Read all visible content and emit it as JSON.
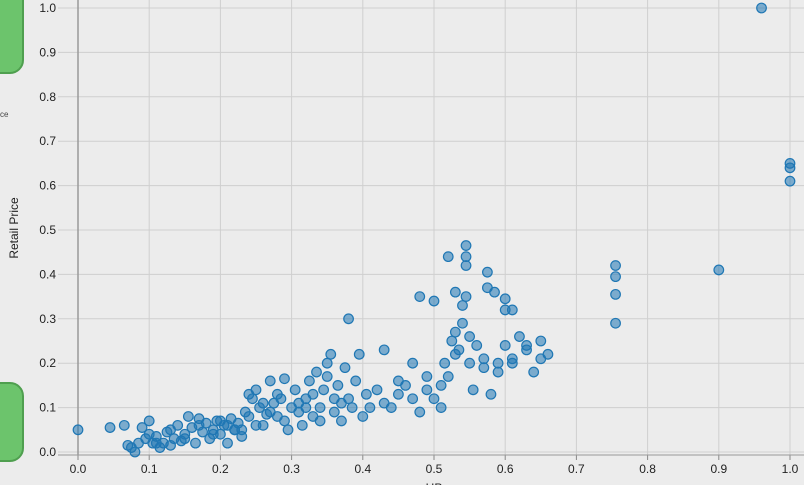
{
  "clipped_label": "ce",
  "chart_data": {
    "type": "scatter",
    "title": "",
    "xlabel": "HP",
    "ylabel": "Retail Price",
    "xlim": [
      0,
      1.0
    ],
    "ylim": [
      0,
      1.0
    ],
    "xticks": [
      "0.0",
      "0.1",
      "0.2",
      "0.3",
      "0.4",
      "0.5",
      "0.6",
      "0.7",
      "0.8",
      "0.9",
      "1.0"
    ],
    "yticks": [
      "0.0",
      "0.1",
      "0.2",
      "0.3",
      "0.4",
      "0.5",
      "0.6",
      "0.7",
      "0.8",
      "0.9",
      "1.0"
    ],
    "grid": true,
    "point_color": "#1f77b4",
    "series": [
      {
        "points": [
          [
            0.0,
            0.05
          ],
          [
            0.045,
            0.055
          ],
          [
            0.065,
            0.06
          ],
          [
            0.07,
            0.015
          ],
          [
            0.075,
            0.01
          ],
          [
            0.08,
            0.0
          ],
          [
            0.085,
            0.02
          ],
          [
            0.09,
            0.055
          ],
          [
            0.095,
            0.03
          ],
          [
            0.1,
            0.07
          ],
          [
            0.1,
            0.04
          ],
          [
            0.105,
            0.02
          ],
          [
            0.11,
            0.035
          ],
          [
            0.115,
            0.01
          ],
          [
            0.12,
            0.02
          ],
          [
            0.125,
            0.045
          ],
          [
            0.13,
            0.015
          ],
          [
            0.135,
            0.03
          ],
          [
            0.14,
            0.06
          ],
          [
            0.145,
            0.025
          ],
          [
            0.15,
            0.04
          ],
          [
            0.155,
            0.08
          ],
          [
            0.16,
            0.055
          ],
          [
            0.165,
            0.02
          ],
          [
            0.17,
            0.075
          ],
          [
            0.175,
            0.045
          ],
          [
            0.18,
            0.065
          ],
          [
            0.185,
            0.03
          ],
          [
            0.19,
            0.05
          ],
          [
            0.195,
            0.07
          ],
          [
            0.2,
            0.04
          ],
          [
            0.205,
            0.06
          ],
          [
            0.21,
            0.02
          ],
          [
            0.215,
            0.075
          ],
          [
            0.22,
            0.05
          ],
          [
            0.225,
            0.065
          ],
          [
            0.23,
            0.035
          ],
          [
            0.235,
            0.09
          ],
          [
            0.24,
            0.13
          ],
          [
            0.245,
            0.12
          ],
          [
            0.25,
            0.14
          ],
          [
            0.255,
            0.1
          ],
          [
            0.26,
            0.06
          ],
          [
            0.265,
            0.085
          ],
          [
            0.27,
            0.16
          ],
          [
            0.275,
            0.11
          ],
          [
            0.28,
            0.08
          ],
          [
            0.285,
            0.12
          ],
          [
            0.29,
            0.165
          ],
          [
            0.295,
            0.05
          ],
          [
            0.3,
            0.1
          ],
          [
            0.305,
            0.14
          ],
          [
            0.31,
            0.09
          ],
          [
            0.315,
            0.06
          ],
          [
            0.32,
            0.12
          ],
          [
            0.325,
            0.16
          ],
          [
            0.33,
            0.08
          ],
          [
            0.335,
            0.18
          ],
          [
            0.34,
            0.1
          ],
          [
            0.345,
            0.14
          ],
          [
            0.35,
            0.2
          ],
          [
            0.355,
            0.22
          ],
          [
            0.36,
            0.09
          ],
          [
            0.365,
            0.15
          ],
          [
            0.37,
            0.07
          ],
          [
            0.375,
            0.19
          ],
          [
            0.38,
            0.12
          ],
          [
            0.385,
            0.1
          ],
          [
            0.39,
            0.16
          ],
          [
            0.395,
            0.22
          ],
          [
            0.4,
            0.08
          ],
          [
            0.405,
            0.13
          ],
          [
            0.41,
            0.1
          ],
          [
            0.42,
            0.14
          ],
          [
            0.43,
            0.23
          ],
          [
            0.44,
            0.1
          ],
          [
            0.45,
            0.13
          ],
          [
            0.46,
            0.15
          ],
          [
            0.47,
            0.2
          ],
          [
            0.48,
            0.09
          ],
          [
            0.49,
            0.17
          ],
          [
            0.5,
            0.12
          ],
          [
            0.51,
            0.1
          ],
          [
            0.515,
            0.2
          ],
          [
            0.52,
            0.17
          ],
          [
            0.525,
            0.25
          ],
          [
            0.53,
            0.27
          ],
          [
            0.535,
            0.23
          ],
          [
            0.54,
            0.29
          ],
          [
            0.545,
            0.35
          ],
          [
            0.55,
            0.2
          ],
          [
            0.555,
            0.14
          ],
          [
            0.56,
            0.24
          ],
          [
            0.57,
            0.21
          ],
          [
            0.58,
            0.13
          ],
          [
            0.59,
            0.2
          ],
          [
            0.6,
            0.24
          ],
          [
            0.61,
            0.21
          ],
          [
            0.62,
            0.26
          ],
          [
            0.63,
            0.23
          ],
          [
            0.64,
            0.18
          ],
          [
            0.65,
            0.25
          ],
          [
            0.66,
            0.22
          ],
          [
            0.38,
            0.3
          ],
          [
            0.48,
            0.35
          ],
          [
            0.5,
            0.34
          ],
          [
            0.52,
            0.44
          ],
          [
            0.53,
            0.36
          ],
          [
            0.54,
            0.33
          ],
          [
            0.545,
            0.465
          ],
          [
            0.545,
            0.44
          ],
          [
            0.545,
            0.42
          ],
          [
            0.575,
            0.405
          ],
          [
            0.575,
            0.37
          ],
          [
            0.585,
            0.36
          ],
          [
            0.6,
            0.345
          ],
          [
            0.6,
            0.32
          ],
          [
            0.61,
            0.32
          ],
          [
            0.755,
            0.42
          ],
          [
            0.755,
            0.395
          ],
          [
            0.755,
            0.355
          ],
          [
            0.755,
            0.29
          ],
          [
            0.9,
            0.41
          ],
          [
            0.96,
            1.0
          ],
          [
            1.0,
            0.65
          ],
          [
            1.0,
            0.64
          ],
          [
            1.0,
            0.61
          ],
          [
            0.21,
            0.06
          ],
          [
            0.23,
            0.05
          ],
          [
            0.27,
            0.09
          ],
          [
            0.31,
            0.11
          ],
          [
            0.33,
            0.13
          ],
          [
            0.35,
            0.17
          ],
          [
            0.37,
            0.11
          ],
          [
            0.29,
            0.07
          ],
          [
            0.25,
            0.06
          ],
          [
            0.19,
            0.04
          ],
          [
            0.17,
            0.06
          ],
          [
            0.15,
            0.03
          ],
          [
            0.13,
            0.05
          ],
          [
            0.11,
            0.02
          ],
          [
            0.43,
            0.11
          ],
          [
            0.45,
            0.16
          ],
          [
            0.47,
            0.12
          ],
          [
            0.49,
            0.14
          ],
          [
            0.51,
            0.15
          ],
          [
            0.53,
            0.22
          ],
          [
            0.55,
            0.26
          ],
          [
            0.57,
            0.19
          ],
          [
            0.59,
            0.18
          ],
          [
            0.61,
            0.2
          ],
          [
            0.63,
            0.24
          ],
          [
            0.65,
            0.21
          ],
          [
            0.34,
            0.07
          ],
          [
            0.36,
            0.12
          ],
          [
            0.32,
            0.1
          ],
          [
            0.28,
            0.13
          ],
          [
            0.26,
            0.11
          ],
          [
            0.24,
            0.08
          ],
          [
            0.22,
            0.05
          ],
          [
            0.2,
            0.07
          ]
        ]
      }
    ]
  }
}
